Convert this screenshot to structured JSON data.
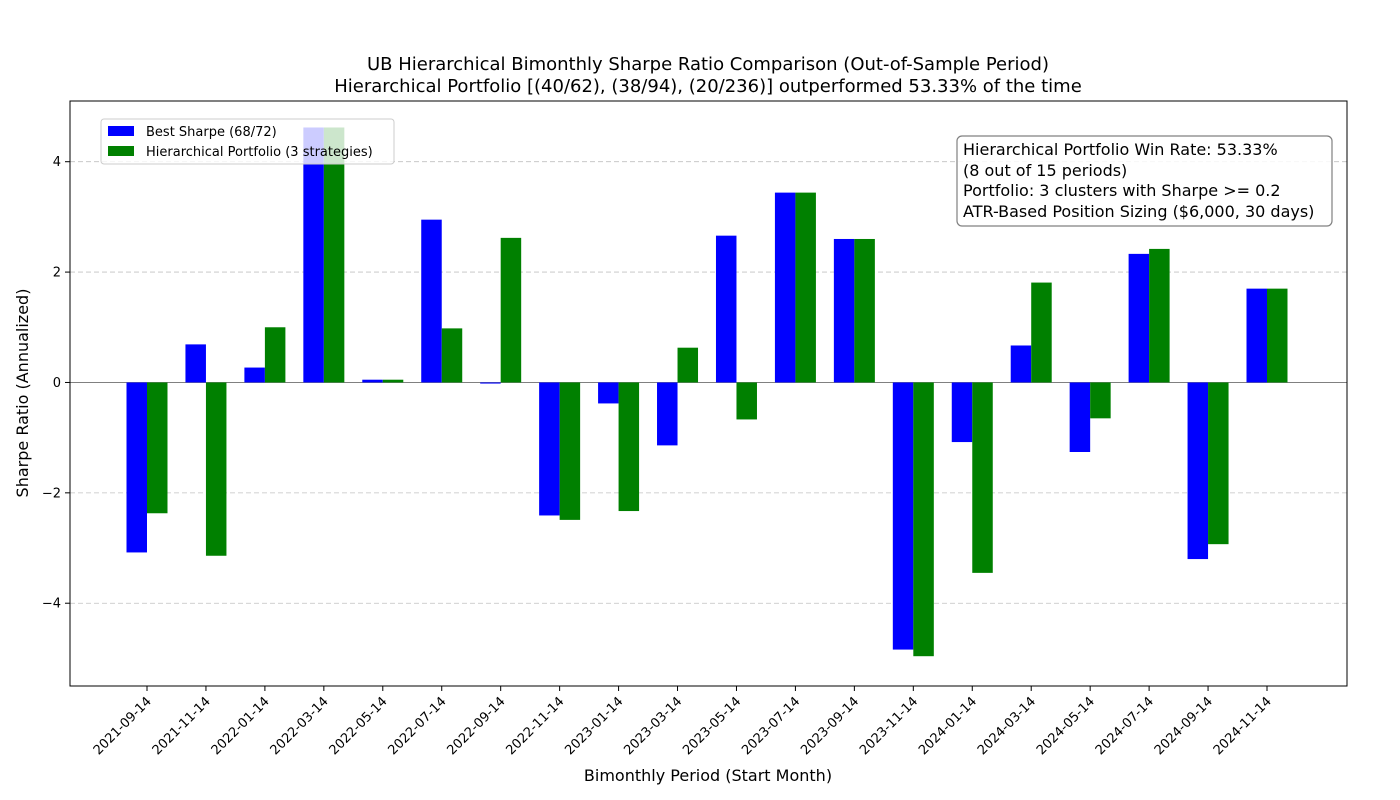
{
  "chart_data": {
    "type": "bar",
    "title": "UB Hierarchical Bimonthly Sharpe Ratio Comparison (Out-of-Sample Period)",
    "subtitle": "Hierarchical Portfolio [(40/62), (38/94), (20/236)] outperformed 53.33% of the time",
    "xlabel": "Bimonthly Period (Start Month)",
    "ylabel": "Sharpe Ratio (Annualized)",
    "ylim": [
      -5.5,
      5.1
    ],
    "yticks": [
      -4,
      -2,
      0,
      2,
      4
    ],
    "ytick_labels": [
      "−4",
      "−2",
      "0",
      "2",
      "4"
    ],
    "grid": "horizontal dashed",
    "legend_position": "top-left",
    "categories": [
      "2021-09-14",
      "2021-11-14",
      "2022-01-14",
      "2022-03-14",
      "2022-05-14",
      "2022-07-14",
      "2022-09-14",
      "2022-11-14",
      "2023-01-14",
      "2023-03-14",
      "2023-05-14",
      "2023-07-14",
      "2023-09-14",
      "2023-11-14",
      "2024-01-14",
      "2024-03-14",
      "2024-05-14",
      "2024-07-14",
      "2024-09-14",
      "2024-11-14"
    ],
    "series": [
      {
        "name": "Best Sharpe (68/72)",
        "color": "#0000ff",
        "values": [
          -3.08,
          0.69,
          0.27,
          4.62,
          0.05,
          2.95,
          -0.02,
          -2.41,
          -0.38,
          -1.14,
          2.66,
          3.44,
          2.6,
          -4.84,
          -1.08,
          0.67,
          -1.26,
          2.33,
          -3.2,
          1.7
        ]
      },
      {
        "name": "Hierarchical Portfolio (3 strategies)",
        "color": "#008000",
        "values": [
          -2.37,
          -3.14,
          1.0,
          4.62,
          0.05,
          0.98,
          2.62,
          -2.49,
          -2.33,
          0.63,
          -0.67,
          3.44,
          2.6,
          -4.96,
          -3.45,
          1.81,
          -0.65,
          2.42,
          -2.93,
          1.7
        ]
      }
    ],
    "annotation": [
      "Hierarchical Portfolio Win Rate: 53.33%",
      "(8 out of 15 periods)",
      "Portfolio: 3 clusters with Sharpe >= 0.2",
      "ATR-Based Position Sizing ($6,000, 30 days)"
    ]
  }
}
